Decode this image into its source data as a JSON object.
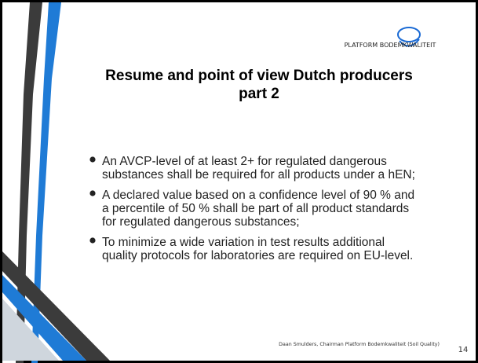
{
  "logo": {
    "text": "PLATFORM BODEMKWALITEIT"
  },
  "slide": {
    "title_lines": [
      "Resume and point of view Dutch producers",
      "part 2"
    ],
    "bullets": [
      [
        "An AVCP-level of at least 2+ for regulated dangerous",
        "substances shall be required for all products under a hEN;"
      ],
      [
        "A declared value based on a confidence level of 90 % and",
        "a percentile of 50 % shall be part of all product standards",
        "for regulated dangerous substances;"
      ],
      [
        "To minimize a wide variation in test results additional",
        "quality protocols for laboratories are required on EU-level."
      ]
    ],
    "footer": "Daan Smulders, Chairman Platform Bodemkwaliteit (Soil Quality)",
    "page_number": "14"
  }
}
